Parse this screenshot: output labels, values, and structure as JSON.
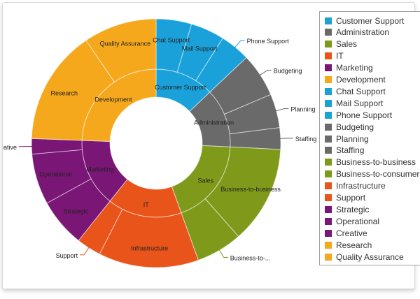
{
  "chart_data": {
    "type": "pie",
    "subtype": "sunburst",
    "colors": {
      "Customer Support": "#1BA1D9",
      "Administration": "#6A6A6A",
      "Sales": "#7F9A1A",
      "IT": "#E9541A",
      "Marketing": "#7A1675",
      "Development": "#F6A81D"
    },
    "inner": [
      {
        "name": "Customer Support",
        "value": 12.9
      },
      {
        "name": "Administration",
        "value": 12.9
      },
      {
        "name": "Sales",
        "value": 18.7
      },
      {
        "name": "IT",
        "value": 16.2
      },
      {
        "name": "Marketing",
        "value": 14.9
      },
      {
        "name": "Development",
        "value": 24.4
      }
    ],
    "outer": [
      {
        "name": "Chat Support",
        "parent": "Customer Support",
        "value": 4.6
      },
      {
        "name": "Mail Support",
        "parent": "Customer Support",
        "value": 4.4
      },
      {
        "name": "Phone Support",
        "parent": "Customer Support",
        "value": 3.9
      },
      {
        "name": "Budgeting",
        "parent": "Administration",
        "value": 5.7
      },
      {
        "name": "Planning",
        "parent": "Administration",
        "value": 4.4
      },
      {
        "name": "Staffing",
        "parent": "Administration",
        "value": 2.8
      },
      {
        "name": "Business-to-business",
        "parent": "Sales",
        "value": 12.7
      },
      {
        "name": "Business-to-consumer",
        "parent": "Sales",
        "value": 6.0
      },
      {
        "name": "Infrastructure",
        "parent": "IT",
        "value": 13.0
      },
      {
        "name": "Support",
        "parent": "IT",
        "value": 3.2
      },
      {
        "name": "Strategic",
        "parent": "Marketing",
        "value": 6.3
      },
      {
        "name": "Operational",
        "parent": "Marketing",
        "value": 6.6
      },
      {
        "name": "Creative",
        "parent": "Marketing",
        "value": 2.0
      },
      {
        "name": "Research",
        "parent": "Development",
        "value": 14.9
      },
      {
        "name": "Quality Assurance",
        "parent": "Development",
        "value": 9.5
      }
    ],
    "legend": [
      "Customer Support",
      "Administration",
      "Sales",
      "IT",
      "Marketing",
      "Development",
      "Chat Support",
      "Mail Support",
      "Phone Support",
      "Budgeting",
      "Planning",
      "Staffing",
      "Business-to-business",
      "Business-to-consumer",
      "Infrastructure",
      "Support",
      "Strategic",
      "Operational",
      "Creative",
      "Research",
      "Quality Assurance"
    ],
    "external_labels": {
      "Creative": "Creative",
      "Support": "Support",
      "Business-to-consumer": "Business-to-...",
      "Staffing": "Staffing",
      "Planning": "Planning",
      "Budgeting": "Budgeting",
      "Phone Support": "Phone Support"
    },
    "legend_position": "right"
  }
}
